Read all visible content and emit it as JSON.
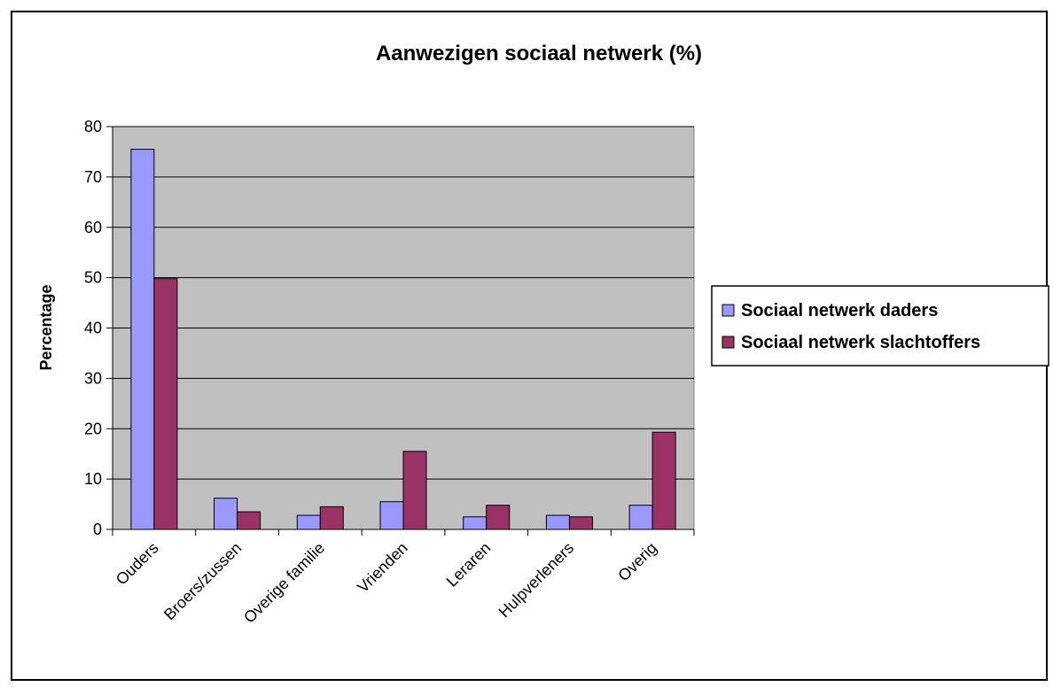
{
  "chart_data": {
    "type": "bar",
    "title": "Aanwezigen sociaal netwerk (%)",
    "xlabel": "",
    "ylabel": "Percentage",
    "categories": [
      "Ouders",
      "Broers/zussen",
      "Overige familie",
      "Vrienden",
      "Leraren",
      "Hulpverleners",
      "Overig"
    ],
    "series": [
      {
        "name": "Sociaal netwerk daders",
        "color": "#9999ff",
        "values": [
          75.5,
          6.2,
          2.8,
          5.5,
          2.5,
          2.8,
          4.8
        ]
      },
      {
        "name": "Sociaal netwerk slachtoffers",
        "color": "#993366",
        "values": [
          49.8,
          3.5,
          4.5,
          15.5,
          4.8,
          2.5,
          19.3
        ]
      }
    ],
    "ylim": [
      0,
      80
    ],
    "yticks": [
      0,
      10,
      20,
      30,
      40,
      50,
      60,
      70,
      80
    ],
    "plot_background": "#c0c0c0",
    "grid": true,
    "legend_position": "right"
  }
}
